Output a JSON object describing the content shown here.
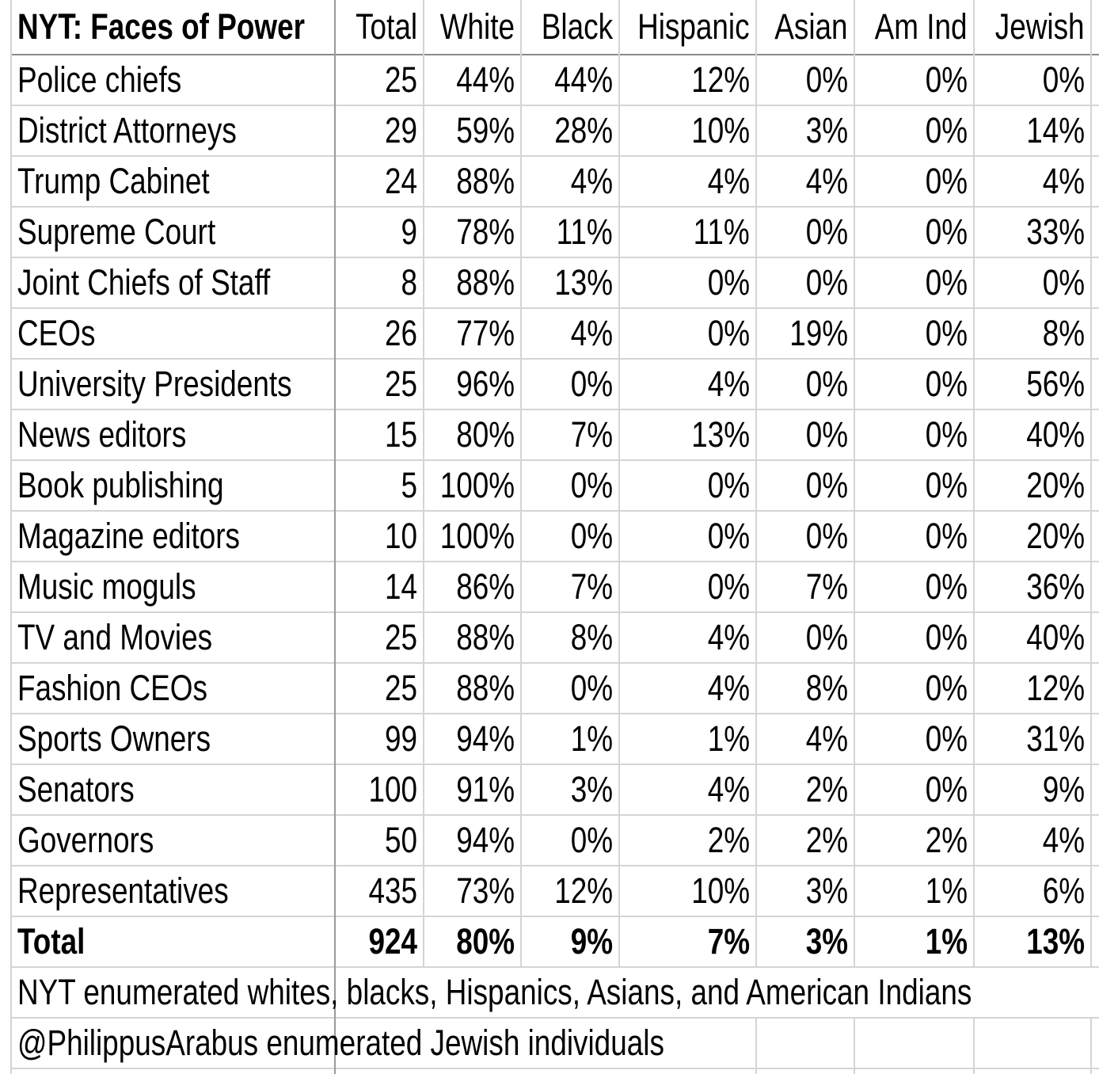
{
  "table": {
    "header": [
      "NYT: Faces of Power",
      "Total",
      "White",
      "Black",
      "Hispanic",
      "Asian",
      "Am Ind",
      "Jewish"
    ],
    "rows": [
      [
        "Police chiefs",
        "25",
        "44%",
        "44%",
        "12%",
        "0%",
        "0%",
        "0%"
      ],
      [
        "District Attorneys",
        "29",
        "59%",
        "28%",
        "10%",
        "3%",
        "0%",
        "14%"
      ],
      [
        "Trump Cabinet",
        "24",
        "88%",
        "4%",
        "4%",
        "4%",
        "0%",
        "4%"
      ],
      [
        "Supreme Court",
        "9",
        "78%",
        "11%",
        "11%",
        "0%",
        "0%",
        "33%"
      ],
      [
        "Joint Chiefs of Staff",
        "8",
        "88%",
        "13%",
        "0%",
        "0%",
        "0%",
        "0%"
      ],
      [
        "CEOs",
        "26",
        "77%",
        "4%",
        "0%",
        "19%",
        "0%",
        "8%"
      ],
      [
        "University Presidents",
        "25",
        "96%",
        "0%",
        "4%",
        "0%",
        "0%",
        "56%"
      ],
      [
        "News editors",
        "15",
        "80%",
        "7%",
        "13%",
        "0%",
        "0%",
        "40%"
      ],
      [
        "Book publishing",
        "5",
        "100%",
        "0%",
        "0%",
        "0%",
        "0%",
        "20%"
      ],
      [
        "Magazine editors",
        "10",
        "100%",
        "0%",
        "0%",
        "0%",
        "0%",
        "20%"
      ],
      [
        "Music moguls",
        "14",
        "86%",
        "7%",
        "0%",
        "7%",
        "0%",
        "36%"
      ],
      [
        "TV and Movies",
        "25",
        "88%",
        "8%",
        "4%",
        "0%",
        "0%",
        "40%"
      ],
      [
        "Fashion CEOs",
        "25",
        "88%",
        "0%",
        "4%",
        "8%",
        "0%",
        "12%"
      ],
      [
        "Sports Owners",
        "99",
        "94%",
        "1%",
        "1%",
        "4%",
        "0%",
        "31%"
      ],
      [
        "Senators",
        "100",
        "91%",
        "3%",
        "4%",
        "2%",
        "0%",
        "9%"
      ],
      [
        "Governors",
        "50",
        "94%",
        "0%",
        "2%",
        "2%",
        "2%",
        "4%"
      ],
      [
        "Representatives",
        "435",
        "73%",
        "12%",
        "10%",
        "3%",
        "1%",
        "6%"
      ]
    ],
    "total": [
      "Total",
      "924",
      "80%",
      "9%",
      "7%",
      "3%",
      "1%",
      "13%"
    ]
  },
  "notes": [
    "NYT enumerated whites, blacks, Hispanics, Asians, and American Indians",
    "@PhilippusArabus enumerated Jewish individuals"
  ]
}
